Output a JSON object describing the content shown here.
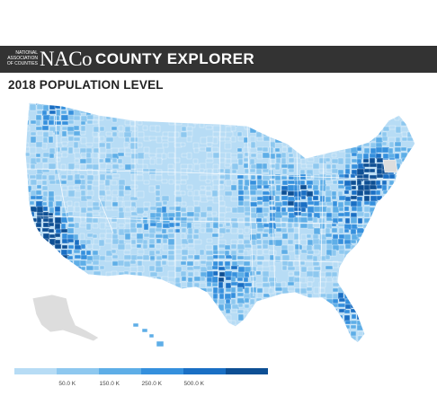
{
  "header": {
    "logo_small": "NATIONAL ASSOCIATION of COUNTIES",
    "logo_mark": "NACo",
    "app_title": "COUNTY EXPLORER"
  },
  "map": {
    "title": "2018 POPULATION LEVEL",
    "no_data_color": "#dddddd",
    "border_color": "#ffffff"
  },
  "legend": {
    "bins": [
      {
        "color": "#b7dcf5"
      },
      {
        "color": "#8ec8ef",
        "label": "50.0 K"
      },
      {
        "color": "#5eaee7",
        "label": "150.0 K"
      },
      {
        "color": "#3590dd",
        "label": "250.0 K"
      },
      {
        "color": "#1a6fc4",
        "label": "500.0 K"
      },
      {
        "color": "#0d4f94"
      }
    ]
  }
}
